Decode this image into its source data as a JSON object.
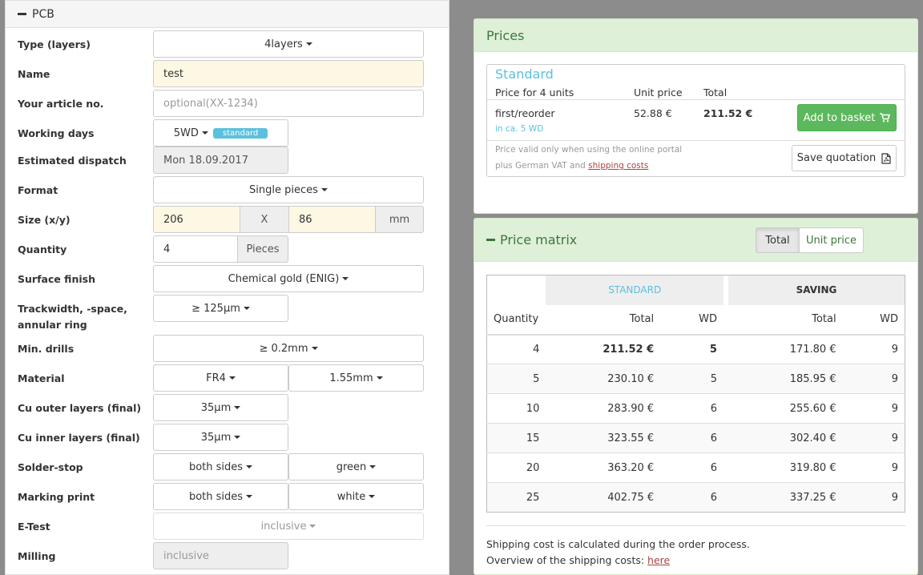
{
  "left_panel": {
    "title": "PCB",
    "fields": {
      "type": {
        "label": "Type (layers)",
        "value": "4layers"
      },
      "name": {
        "label": "Name",
        "value": "test"
      },
      "article": {
        "label": "Your article no.",
        "placeholder": "optional(XX-1234)"
      },
      "working_days": {
        "label": "Working days",
        "value": "5WD",
        "badge": "standard"
      },
      "dispatch": {
        "label": "Estimated dispatch",
        "value": "Mon 18.09.2017"
      },
      "format": {
        "label": "Format",
        "value": "Single pieces"
      },
      "size": {
        "label": "Size (x/y)",
        "x": "206",
        "sep": "X",
        "y": "86",
        "unit": "mm"
      },
      "quantity": {
        "label": "Quantity",
        "value": "4",
        "unit": "Pieces"
      },
      "surface": {
        "label": "Surface finish",
        "value": "Chemical gold (ENIG)"
      },
      "trackwidth": {
        "label_line1": "Trackwidth, -space,",
        "label_line2": "annular ring",
        "value": "≥ 125µm"
      },
      "drills": {
        "label": "Min. drills",
        "value": "≥ 0.2mm"
      },
      "material": {
        "label": "Material",
        "value1": "FR4",
        "value2": "1.55mm"
      },
      "cu_outer": {
        "label": "Cu outer layers (final)",
        "value": "35µm"
      },
      "cu_inner": {
        "label": "Cu inner layers (final)",
        "value": "35µm"
      },
      "solder": {
        "label": "Solder-stop",
        "value1": "both sides",
        "value2": "green"
      },
      "marking": {
        "label": "Marking print",
        "value1": "both sides",
        "value2": "white"
      },
      "etest": {
        "label": "E-Test",
        "value": "inclusive"
      },
      "milling": {
        "label": "Milling",
        "value": "inclusive"
      }
    }
  },
  "prices": {
    "title": "Prices",
    "standard_title": "Standard",
    "col_units": "Price for 4 units",
    "col_unit_price": "Unit price",
    "col_total": "Total",
    "row_label": "first/reorder",
    "row_sub": "in ca. 5 WD",
    "unit_price": "52.88 €",
    "total": "211.52 €",
    "add_button": "Add to basket",
    "note_line1": "Price valid only when using the online portal",
    "note_line2_prefix": "plus German VAT and ",
    "note_link": "shipping costs",
    "save_button": "Save quotation"
  },
  "matrix": {
    "title": "Price matrix",
    "toggle_total": "Total",
    "toggle_unit": "Unit price",
    "group_standard": "STANDARD",
    "group_saving": "SAVING",
    "col_quantity": "Quantity",
    "col_total": "Total",
    "col_wd": "WD",
    "rows": [
      {
        "qty": "4",
        "std_total": "211.52 €",
        "std_wd": "5",
        "sav_total": "171.80 €",
        "sav_wd": "9"
      },
      {
        "qty": "5",
        "std_total": "230.10 €",
        "std_wd": "5",
        "sav_total": "185.95 €",
        "sav_wd": "9"
      },
      {
        "qty": "10",
        "std_total": "283.90 €",
        "std_wd": "6",
        "sav_total": "255.60 €",
        "sav_wd": "9"
      },
      {
        "qty": "15",
        "std_total": "323.55 €",
        "std_wd": "6",
        "sav_total": "302.40 €",
        "sav_wd": "9"
      },
      {
        "qty": "20",
        "std_total": "363.20 €",
        "std_wd": "6",
        "sav_total": "319.80 €",
        "sav_wd": "9"
      },
      {
        "qty": "25",
        "std_total": "402.75 €",
        "std_wd": "6",
        "sav_total": "337.25 €",
        "sav_wd": "9"
      }
    ],
    "footer_line1": "Shipping cost is calculated during the order process.",
    "footer_line2_prefix": "Overview of the shipping costs: ",
    "footer_link": "here"
  },
  "colors": {
    "accent_green": "#5cb85c",
    "panel_green": "#dff0d8",
    "info_blue": "#5bc0de",
    "highlight_yellow": "#fcf8e3"
  }
}
